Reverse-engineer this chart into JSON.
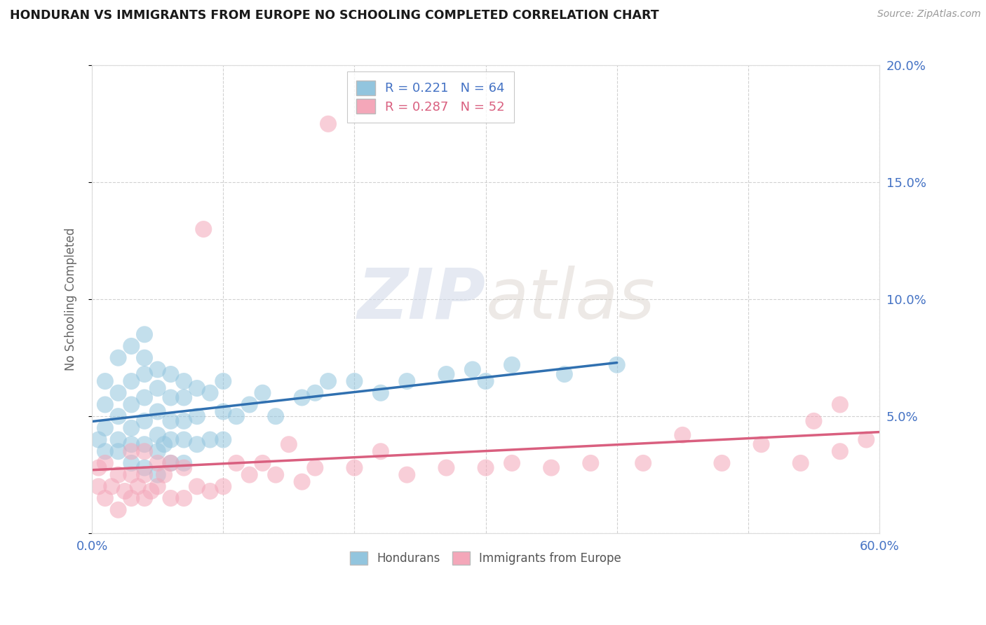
{
  "title": "HONDURAN VS IMMIGRANTS FROM EUROPE NO SCHOOLING COMPLETED CORRELATION CHART",
  "source": "Source: ZipAtlas.com",
  "ylabel": "No Schooling Completed",
  "xlim": [
    0.0,
    0.6
  ],
  "ylim": [
    0.0,
    0.2
  ],
  "xticks": [
    0.0,
    0.1,
    0.2,
    0.3,
    0.4,
    0.5,
    0.6
  ],
  "yticks": [
    0.0,
    0.05,
    0.1,
    0.15,
    0.2
  ],
  "legend_blue_label": "Hondurans",
  "legend_pink_label": "Immigrants from Europe",
  "r_blue": "0.221",
  "n_blue": "64",
  "r_pink": "0.287",
  "n_pink": "52",
  "blue_color": "#92c5de",
  "pink_color": "#f4a7b9",
  "blue_line_color": "#3070b0",
  "pink_line_color": "#d95f7f",
  "watermark_zip": "ZIP",
  "watermark_atlas": "atlas",
  "blue_scatter_x": [
    0.005,
    0.01,
    0.01,
    0.01,
    0.01,
    0.02,
    0.02,
    0.02,
    0.02,
    0.02,
    0.03,
    0.03,
    0.03,
    0.03,
    0.03,
    0.03,
    0.04,
    0.04,
    0.04,
    0.04,
    0.04,
    0.04,
    0.04,
    0.05,
    0.05,
    0.05,
    0.05,
    0.05,
    0.05,
    0.055,
    0.06,
    0.06,
    0.06,
    0.06,
    0.06,
    0.07,
    0.07,
    0.07,
    0.07,
    0.07,
    0.08,
    0.08,
    0.08,
    0.09,
    0.09,
    0.1,
    0.1,
    0.1,
    0.11,
    0.12,
    0.13,
    0.14,
    0.16,
    0.17,
    0.18,
    0.2,
    0.22,
    0.24,
    0.27,
    0.29,
    0.3,
    0.32,
    0.36,
    0.4
  ],
  "blue_scatter_y": [
    0.04,
    0.035,
    0.045,
    0.055,
    0.065,
    0.035,
    0.04,
    0.05,
    0.06,
    0.075,
    0.03,
    0.038,
    0.045,
    0.055,
    0.065,
    0.08,
    0.028,
    0.038,
    0.048,
    0.058,
    0.068,
    0.075,
    0.085,
    0.025,
    0.035,
    0.042,
    0.052,
    0.062,
    0.07,
    0.038,
    0.03,
    0.04,
    0.048,
    0.058,
    0.068,
    0.03,
    0.04,
    0.048,
    0.058,
    0.065,
    0.038,
    0.05,
    0.062,
    0.04,
    0.06,
    0.04,
    0.052,
    0.065,
    0.05,
    0.055,
    0.06,
    0.05,
    0.058,
    0.06,
    0.065,
    0.065,
    0.06,
    0.065,
    0.068,
    0.07,
    0.065,
    0.072,
    0.068,
    0.072
  ],
  "pink_scatter_x": [
    0.005,
    0.005,
    0.01,
    0.01,
    0.015,
    0.02,
    0.02,
    0.025,
    0.03,
    0.03,
    0.03,
    0.035,
    0.04,
    0.04,
    0.04,
    0.045,
    0.05,
    0.05,
    0.055,
    0.06,
    0.06,
    0.07,
    0.07,
    0.08,
    0.085,
    0.09,
    0.1,
    0.11,
    0.12,
    0.13,
    0.14,
    0.15,
    0.16,
    0.17,
    0.18,
    0.2,
    0.22,
    0.24,
    0.27,
    0.3,
    0.32,
    0.35,
    0.38,
    0.42,
    0.45,
    0.48,
    0.51,
    0.54,
    0.55,
    0.57,
    0.57,
    0.59
  ],
  "pink_scatter_y": [
    0.02,
    0.028,
    0.015,
    0.03,
    0.02,
    0.01,
    0.025,
    0.018,
    0.015,
    0.025,
    0.035,
    0.02,
    0.015,
    0.025,
    0.035,
    0.018,
    0.02,
    0.03,
    0.025,
    0.015,
    0.03,
    0.015,
    0.028,
    0.02,
    0.13,
    0.018,
    0.02,
    0.03,
    0.025,
    0.03,
    0.025,
    0.038,
    0.022,
    0.028,
    0.175,
    0.028,
    0.035,
    0.025,
    0.028,
    0.028,
    0.03,
    0.028,
    0.03,
    0.03,
    0.042,
    0.03,
    0.038,
    0.03,
    0.048,
    0.055,
    0.035,
    0.04
  ]
}
